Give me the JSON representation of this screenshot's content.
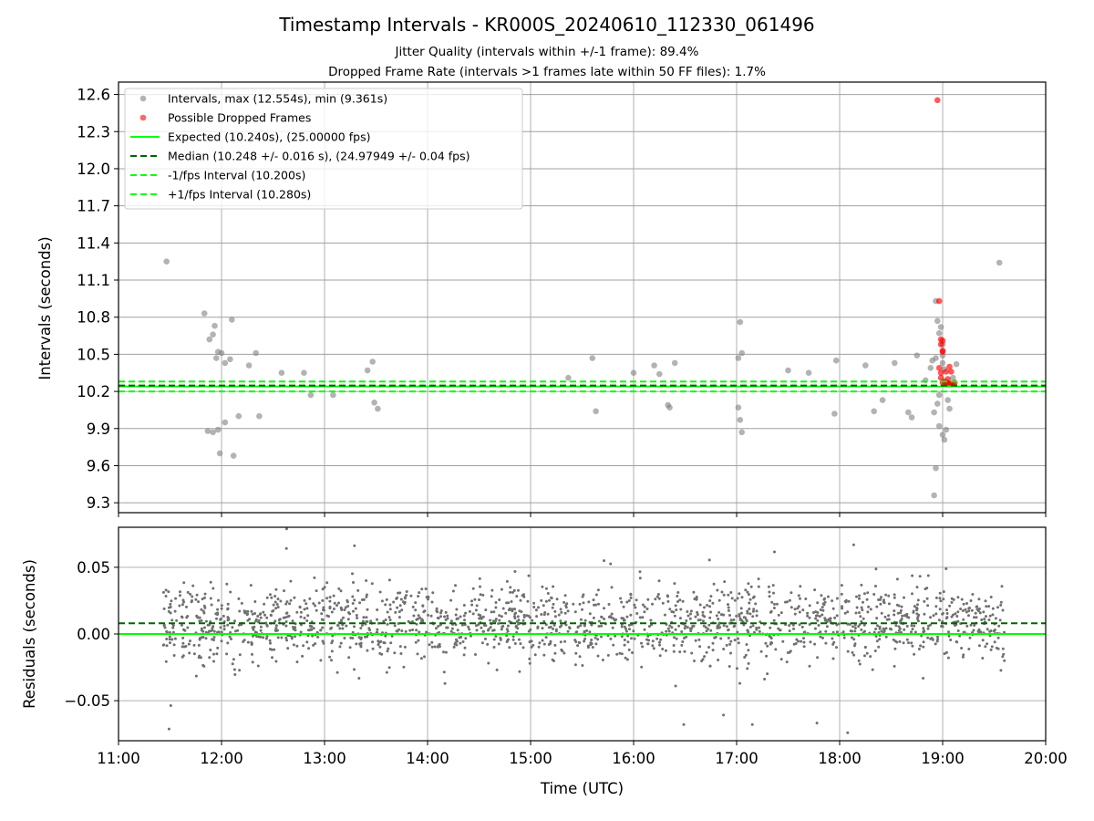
{
  "figure": {
    "title": "Timestamp Intervals - KR000S_20240610_112330_061496",
    "subtitle_1": "Jitter Quality (intervals within +/-1 frame): 89.4%",
    "subtitle_2": "Dropped Frame Rate (intervals >1 frames late within 50 FF files): 1.7%"
  },
  "chart_data": [
    {
      "type": "scatter",
      "panel": "intervals",
      "ylabel": "Intervals (seconds)",
      "xlabel": "",
      "ylim": [
        9.22,
        12.7
      ],
      "yticks": [
        9.3,
        9.6,
        9.9,
        10.2,
        10.5,
        10.8,
        11.1,
        11.4,
        11.7,
        12.0,
        12.3,
        12.6
      ],
      "ytick_labels": [
        "9.3",
        "9.6",
        "9.9",
        "10.2",
        "10.5",
        "10.8",
        "11.1",
        "11.4",
        "11.7",
        "12.0",
        "12.3",
        "12.6"
      ],
      "grid": true,
      "legend_position": "top-left",
      "legend": [
        {
          "label": "Intervals, max (12.554s), min (9.361s)",
          "marker": "circle",
          "color": "#808080"
        },
        {
          "label": "Possible Dropped Frames",
          "marker": "circle",
          "color": "#ff0000"
        },
        {
          "label": "Expected (10.240s), (25.00000 fps)",
          "style": "solid",
          "color": "#00ff00"
        },
        {
          "label": "Median (10.248 +/- 0.016 s), (24.97949 +/- 0.04 fps)",
          "style": "dashed",
          "color": "#006400"
        },
        {
          "label": "-1/fps Interval (10.200s)",
          "style": "dashed",
          "color": "#00ff00"
        },
        {
          "label": "+1/fps Interval (10.280s)",
          "style": "dashed",
          "color": "#00ff00"
        }
      ],
      "reference_lines": [
        {
          "y": 10.24,
          "style": "solid",
          "color": "#00ff00"
        },
        {
          "y": 10.248,
          "style": "dashed",
          "color": "#006400"
        },
        {
          "y": 10.2,
          "style": "dashed",
          "color": "#00ff00"
        },
        {
          "y": 10.28,
          "style": "dashed",
          "color": "#00ff00"
        }
      ],
      "series": [
        {
          "name": "Intervals, max (12.554s), min (9.361s)",
          "color": "#808080",
          "outliers": [
            [
              "11:28",
              11.25
            ],
            [
              "11:50",
              10.83
            ],
            [
              "11:53",
              10.62
            ],
            [
              "11:55",
              10.66
            ],
            [
              "11:56",
              10.73
            ],
            [
              "11:57",
              10.47
            ],
            [
              "11:58",
              10.52
            ],
            [
              "12:00",
              10.51
            ],
            [
              "12:02",
              10.43
            ],
            [
              "12:05",
              10.46
            ],
            [
              "12:06",
              10.78
            ],
            [
              "11:52",
              9.88
            ],
            [
              "11:55",
              9.87
            ],
            [
              "11:58",
              9.89
            ],
            [
              "11:59",
              9.7
            ],
            [
              "12:02",
              9.95
            ],
            [
              "12:07",
              9.68
            ],
            [
              "12:10",
              10.0
            ],
            [
              "12:16",
              10.41
            ],
            [
              "12:20",
              10.51
            ],
            [
              "12:22",
              10.0
            ],
            [
              "12:35",
              10.35
            ],
            [
              "12:48",
              10.35
            ],
            [
              "12:52",
              10.17
            ],
            [
              "13:05",
              10.17
            ],
            [
              "13:25",
              10.37
            ],
            [
              "13:28",
              10.44
            ],
            [
              "13:29",
              10.11
            ],
            [
              "13:31",
              10.06
            ],
            [
              "15:22",
              10.31
            ],
            [
              "15:36",
              10.47
            ],
            [
              "15:38",
              10.04
            ],
            [
              "16:00",
              10.35
            ],
            [
              "16:12",
              10.41
            ],
            [
              "16:15",
              10.34
            ],
            [
              "16:20",
              10.09
            ],
            [
              "16:21",
              10.07
            ],
            [
              "16:24",
              10.43
            ],
            [
              "17:01",
              10.47
            ],
            [
              "17:02",
              10.76
            ],
            [
              "17:03",
              10.51
            ],
            [
              "17:01",
              10.07
            ],
            [
              "17:02",
              9.97
            ],
            [
              "17:03",
              9.87
            ],
            [
              "17:30",
              10.37
            ],
            [
              "17:42",
              10.35
            ],
            [
              "17:58",
              10.45
            ],
            [
              "17:57",
              10.02
            ],
            [
              "18:15",
              10.41
            ],
            [
              "18:20",
              10.04
            ],
            [
              "18:25",
              10.13
            ],
            [
              "18:32",
              10.43
            ],
            [
              "18:40",
              10.03
            ],
            [
              "18:45",
              10.49
            ],
            [
              "18:42",
              9.99
            ],
            [
              "18:50",
              10.29
            ],
            [
              "18:53",
              10.39
            ],
            [
              "18:54",
              10.45
            ],
            [
              "18:56",
              10.47
            ],
            [
              "18:57",
              10.1
            ],
            [
              "18:58",
              10.17
            ],
            [
              "18:55",
              10.03
            ],
            [
              "19:00",
              10.58
            ],
            [
              "18:58",
              10.67
            ],
            [
              "18:56",
              10.93
            ],
            [
              "18:57",
              10.77
            ],
            [
              "18:59",
              10.72
            ],
            [
              "19:00",
              10.49
            ],
            [
              "19:00",
              10.43
            ],
            [
              "19:01",
              10.38
            ],
            [
              "18:56",
              9.58
            ],
            [
              "18:55",
              9.36
            ],
            [
              "18:58",
              9.92
            ],
            [
              "19:00",
              9.85
            ],
            [
              "19:01",
              9.81
            ],
            [
              "19:02",
              9.89
            ],
            [
              "19:03",
              10.13
            ],
            [
              "19:04",
              10.06
            ],
            [
              "19:06",
              10.31
            ],
            [
              "19:08",
              10.42
            ],
            [
              "19:33",
              11.24
            ]
          ]
        },
        {
          "name": "Possible Dropped Frames",
          "color": "#ff0000",
          "points": [
            [
              "18:57",
              12.554
            ],
            [
              "18:58",
              10.93
            ],
            [
              "18:59",
              10.62
            ],
            [
              "19:00",
              10.61
            ],
            [
              "18:59",
              10.58
            ],
            [
              "19:00",
              10.53
            ],
            [
              "19:00",
              10.52
            ],
            [
              "18:58",
              10.39
            ],
            [
              "18:59",
              10.35
            ],
            [
              "19:02",
              10.36
            ],
            [
              "19:04",
              10.4
            ],
            [
              "19:05",
              10.36
            ],
            [
              "19:03",
              10.3
            ],
            [
              "18:59",
              10.31
            ],
            [
              "19:01",
              10.28
            ],
            [
              "19:02",
              10.27
            ],
            [
              "19:03",
              10.27
            ],
            [
              "19:04",
              10.26
            ],
            [
              "19:05",
              10.26
            ],
            [
              "19:06",
              10.26
            ],
            [
              "19:07",
              10.27
            ],
            [
              "19:00",
              10.27
            ]
          ]
        }
      ]
    },
    {
      "type": "scatter",
      "panel": "residuals",
      "ylabel": "Residuals (seconds)",
      "xlabel": "Time (UTC)",
      "ylim": [
        -0.08,
        0.08
      ],
      "yticks": [
        -0.05,
        0.0,
        0.05
      ],
      "ytick_labels": [
        "−0.05",
        "0.00",
        "0.05"
      ],
      "xlim": [
        "11:00",
        "20:00"
      ],
      "xtick_labels": [
        "11:00",
        "12:00",
        "13:00",
        "14:00",
        "15:00",
        "16:00",
        "17:00",
        "18:00",
        "19:00",
        "20:00"
      ],
      "grid": true,
      "reference_lines": [
        {
          "y": 0.0,
          "style": "solid",
          "color": "#00ff00"
        },
        {
          "y": 0.008,
          "style": "dashed",
          "color": "#006400"
        }
      ],
      "series": [
        {
          "color": "#808080",
          "x_range": [
            "11:26",
            "19:36"
          ],
          "spread": 0.02,
          "center": 0.008
        }
      ]
    }
  ]
}
